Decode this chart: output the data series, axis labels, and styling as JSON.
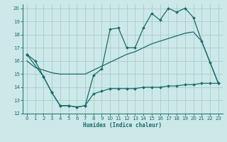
{
  "bg_color": "#cce8e8",
  "grid_color": "#aacccc",
  "line_color": "#1a6b6b",
  "xlabel": "Humidex (Indice chaleur)",
  "xlim": [
    -0.5,
    23.5
  ],
  "ylim": [
    12,
    20.3
  ],
  "yticks": [
    12,
    13,
    14,
    15,
    16,
    17,
    18,
    19,
    20
  ],
  "xticks": [
    0,
    1,
    2,
    3,
    4,
    5,
    6,
    7,
    8,
    9,
    10,
    11,
    12,
    13,
    14,
    15,
    16,
    17,
    18,
    19,
    20,
    21,
    22,
    23
  ],
  "line1_x": [
    0,
    1,
    2,
    3,
    4,
    5,
    6,
    7,
    8,
    9,
    10,
    11,
    12,
    13,
    14,
    15,
    16,
    17,
    18,
    19,
    20,
    21,
    22,
    23
  ],
  "line1_y": [
    16.5,
    16.0,
    14.8,
    13.6,
    12.6,
    12.6,
    12.5,
    12.6,
    14.9,
    15.4,
    18.4,
    18.5,
    17.0,
    17.0,
    18.5,
    19.6,
    19.1,
    20.0,
    19.7,
    20.0,
    19.3,
    17.5,
    15.9,
    14.3
  ],
  "line2_x": [
    0,
    1,
    2,
    3,
    4,
    5,
    6,
    7,
    8,
    9,
    10,
    11,
    12,
    13,
    14,
    15,
    16,
    17,
    18,
    19,
    20,
    21,
    22,
    23
  ],
  "line2_y": [
    16.0,
    15.5,
    15.3,
    15.1,
    15.0,
    15.0,
    15.0,
    15.0,
    15.3,
    15.6,
    15.9,
    16.2,
    16.5,
    16.7,
    17.0,
    17.3,
    17.5,
    17.7,
    17.9,
    18.1,
    18.2,
    17.5,
    15.9,
    14.3
  ],
  "line3_x": [
    0,
    2,
    3,
    4,
    5,
    6,
    7,
    8,
    9,
    10,
    11,
    12,
    13,
    14,
    15,
    16,
    17,
    18,
    19,
    20,
    21,
    22,
    23
  ],
  "line3_y": [
    16.5,
    14.8,
    13.6,
    12.6,
    12.6,
    12.5,
    12.6,
    13.5,
    13.7,
    13.9,
    13.9,
    13.9,
    13.9,
    14.0,
    14.0,
    14.0,
    14.1,
    14.1,
    14.2,
    14.2,
    14.3,
    14.3,
    14.3
  ]
}
